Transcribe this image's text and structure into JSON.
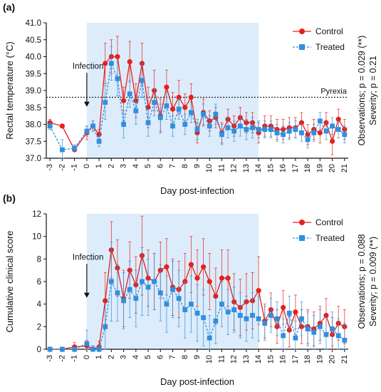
{
  "colors": {
    "control": "#e5201c",
    "treated": "#2f8fe0",
    "shade": "#dcecfa",
    "axis": "#111111"
  },
  "chart_data": [
    {
      "type": "line",
      "panel_label": "(a)",
      "xlabel": "Day post-infection",
      "ylabel": "Rectal temperature (°C)",
      "ylim": [
        37.0,
        41.0
      ],
      "yticks": [
        "37.0",
        "37.5",
        "38.0",
        "38.5",
        "39.0",
        "39.5",
        "40.0",
        "40.5",
        "41.0"
      ],
      "xticks": [
        "-3",
        "-2",
        "-1",
        "0",
        "1",
        "2",
        "3",
        "4",
        "5",
        "6",
        "7",
        "8",
        "9",
        "10",
        "11",
        "12",
        "13",
        "14",
        "15",
        "16",
        "17",
        "18",
        "19",
        "20",
        "21"
      ],
      "shaded_x": [
        0,
        14
      ],
      "threshold": {
        "y": 38.8,
        "label": "Pyrexia"
      },
      "arrow": {
        "x": 0,
        "label": "Infection"
      },
      "stats_text": [
        "Observations; p = 0.029 (**)",
        "Severity; p = 0.21"
      ],
      "legend_position": "top-right",
      "series": [
        {
          "name": "Control",
          "x": [
            -3,
            -2,
            -1,
            0,
            0.5,
            1,
            1.5,
            2,
            2.5,
            3,
            3.5,
            4,
            4.5,
            5,
            5.5,
            6,
            6.5,
            7,
            7.5,
            8,
            8.5,
            9,
            9.5,
            10,
            10.5,
            11,
            11.5,
            12,
            12.5,
            13,
            13.5,
            14,
            14.5,
            15,
            15.5,
            16,
            16.5,
            17,
            17.5,
            18,
            18.5,
            19,
            19.5,
            20,
            20.5,
            21
          ],
          "y": [
            38.05,
            37.95,
            37.25,
            37.75,
            37.95,
            37.7,
            39.8,
            40.0,
            40.0,
            38.7,
            39.85,
            38.7,
            39.8,
            38.5,
            39.0,
            38.25,
            39.1,
            38.45,
            38.8,
            38.5,
            38.8,
            37.75,
            38.35,
            38.1,
            38.2,
            37.75,
            38.15,
            37.95,
            38.2,
            38.05,
            38.05,
            37.75,
            37.95,
            37.95,
            37.85,
            37.85,
            37.9,
            37.9,
            38.05,
            37.7,
            37.85,
            37.75,
            38.05,
            37.5,
            38.15,
            37.85
          ],
          "err": [
            0.1,
            0.05,
            0.05,
            0.2,
            0.15,
            0.15,
            0.6,
            0.5,
            0.6,
            0.4,
            0.6,
            0.5,
            0.6,
            0.6,
            0.6,
            0.5,
            0.5,
            0.5,
            0.5,
            0.4,
            0.4,
            0.3,
            0.4,
            0.3,
            0.3,
            0.3,
            0.3,
            0.3,
            0.3,
            0.3,
            0.3,
            0.3,
            0.3,
            0.3,
            0.3,
            0.3,
            0.3,
            0.3,
            0.3,
            0.3,
            0.3,
            0.3,
            0.3,
            0.4,
            0.3,
            0.3
          ]
        },
        {
          "name": "Treated",
          "x": [
            -3,
            -2,
            -1,
            0,
            0.5,
            1,
            1.5,
            2,
            2.5,
            3,
            3.5,
            4,
            4.5,
            5,
            5.5,
            6,
            6.5,
            7,
            7.5,
            8,
            8.5,
            9,
            9.5,
            10,
            10.5,
            11,
            11.5,
            12,
            12.5,
            13,
            13.5,
            14,
            14.5,
            15,
            15.5,
            16,
            16.5,
            17,
            17.5,
            18,
            18.5,
            19,
            19.5,
            20,
            20.5,
            21
          ],
          "y": [
            37.95,
            37.25,
            37.3,
            37.8,
            37.95,
            37.5,
            38.65,
            39.8,
            39.35,
            38.0,
            38.9,
            38.4,
            39.3,
            38.05,
            38.65,
            38.2,
            38.55,
            37.95,
            38.45,
            38.0,
            38.35,
            37.85,
            38.3,
            37.95,
            38.3,
            37.7,
            37.9,
            37.8,
            37.95,
            37.85,
            37.9,
            37.85,
            37.85,
            37.85,
            37.75,
            37.7,
            37.8,
            37.85,
            37.75,
            37.55,
            37.75,
            38.1,
            37.8,
            37.95,
            37.85,
            37.7
          ],
          "err": [
            0.1,
            0.3,
            0.1,
            0.15,
            0.15,
            0.15,
            0.5,
            0.5,
            0.5,
            0.4,
            0.4,
            0.4,
            0.5,
            0.4,
            0.4,
            0.4,
            0.4,
            0.3,
            0.3,
            0.3,
            0.3,
            0.3,
            0.3,
            0.3,
            0.3,
            0.3,
            0.3,
            0.3,
            0.3,
            0.3,
            0.3,
            0.25,
            0.25,
            0.25,
            0.25,
            0.25,
            0.25,
            0.25,
            0.25,
            0.25,
            0.25,
            0.25,
            0.25,
            0.25,
            0.25,
            0.25
          ]
        }
      ]
    },
    {
      "type": "line",
      "panel_label": "(b)",
      "xlabel": "Day post-infection",
      "ylabel": "Cumulative clinical score",
      "ylim": [
        0,
        12
      ],
      "yticks": [
        "0",
        "2",
        "4",
        "6",
        "8",
        "10",
        "12"
      ],
      "xticks": [
        "-3",
        "-2",
        "-1",
        "0",
        "1",
        "2",
        "3",
        "4",
        "5",
        "6",
        "7",
        "8",
        "9",
        "10",
        "11",
        "12",
        "13",
        "14",
        "15",
        "16",
        "17",
        "18",
        "19",
        "20",
        "21"
      ],
      "shaded_x": [
        0,
        14
      ],
      "arrow": {
        "x": 0,
        "label": "Infection"
      },
      "stats_text": [
        "Observations; p = 0.088",
        "Severity; p = 0.009 (**)"
      ],
      "legend_position": "top-right",
      "series": [
        {
          "name": "Control",
          "x": [
            -3,
            -2,
            -1,
            0,
            0.5,
            1,
            1.5,
            2,
            2.5,
            3,
            3.5,
            4,
            4.5,
            5,
            5.5,
            6,
            6.5,
            7,
            7.5,
            8,
            8.5,
            9,
            9.5,
            10,
            10.5,
            11,
            11.5,
            12,
            12.5,
            13,
            13.5,
            14,
            14.5,
            15,
            15.5,
            16,
            16.5,
            17,
            17.5,
            18,
            18.5,
            19,
            19.5,
            20,
            20.5,
            21
          ],
          "y": [
            0,
            0,
            0.2,
            0.3,
            0,
            0.2,
            4.3,
            8.8,
            7.2,
            4.5,
            7.0,
            5.7,
            8.3,
            6.3,
            6.0,
            7.0,
            7.3,
            5.5,
            5.3,
            6.0,
            7.5,
            6.3,
            7.3,
            6.0,
            4.7,
            6.3,
            6.3,
            4.2,
            3.7,
            4.2,
            4.3,
            5.2,
            2.5,
            3.5,
            2.0,
            3.7,
            1.7,
            3.3,
            2.0,
            2.0,
            1.8,
            2.3,
            3.0,
            1.3,
            2.3,
            2.0
          ],
          "err": [
            0.1,
            0.1,
            0.4,
            0.5,
            0.3,
            0.5,
            2.5,
            2.5,
            2.5,
            2.5,
            2.5,
            2.5,
            3.5,
            2.5,
            2.5,
            2.5,
            2.5,
            2.5,
            2.5,
            2.5,
            2.5,
            2.5,
            2.5,
            2.5,
            2.5,
            2.5,
            2.5,
            2.5,
            2.5,
            2.5,
            2.5,
            3.0,
            1.5,
            1.5,
            1.5,
            1.5,
            1.5,
            1.5,
            1.5,
            1.5,
            1.5,
            1.5,
            1.5,
            1.5,
            1.5,
            1.5
          ]
        },
        {
          "name": "Treated",
          "x": [
            -3,
            -2,
            -1,
            0,
            0.5,
            1,
            1.5,
            2,
            2.5,
            3,
            3.5,
            4,
            4.5,
            5,
            5.5,
            6,
            6.5,
            7,
            7.5,
            8,
            8.5,
            9,
            9.5,
            10,
            10.5,
            11,
            11.5,
            12,
            12.5,
            13,
            13.5,
            14,
            14.5,
            15,
            15.5,
            16,
            16.5,
            17,
            17.5,
            18,
            18.5,
            19,
            19.5,
            20,
            20.5,
            21
          ],
          "y": [
            0,
            0,
            0,
            0.5,
            0,
            0,
            2.0,
            6.0,
            5.0,
            4.3,
            5.3,
            4.5,
            6.0,
            5.5,
            6.0,
            5.0,
            4.0,
            5.3,
            4.5,
            3.5,
            4.0,
            3.2,
            2.8,
            1.0,
            2.5,
            4.0,
            3.3,
            3.5,
            3.0,
            2.7,
            3.0,
            2.7,
            2.3,
            3.0,
            2.7,
            1.2,
            3.2,
            1.0,
            2.7,
            1.8,
            1.5,
            2.0,
            1.3,
            1.8,
            1.2,
            0.8
          ],
          "err": [
            0.1,
            0.1,
            0.1,
            1.2,
            0.3,
            0.3,
            2.0,
            3.5,
            2.5,
            2.5,
            2.5,
            2.5,
            3.0,
            2.5,
            2.5,
            2.5,
            2.5,
            2.5,
            2.5,
            2.5,
            2.5,
            2.5,
            2.5,
            2.0,
            2.0,
            2.0,
            2.0,
            2.0,
            2.0,
            2.0,
            2.0,
            2.0,
            1.5,
            1.5,
            1.5,
            1.5,
            1.5,
            1.5,
            1.5,
            1.5,
            1.5,
            1.5,
            1.5,
            1.5,
            1.5,
            1.5
          ]
        }
      ]
    }
  ]
}
